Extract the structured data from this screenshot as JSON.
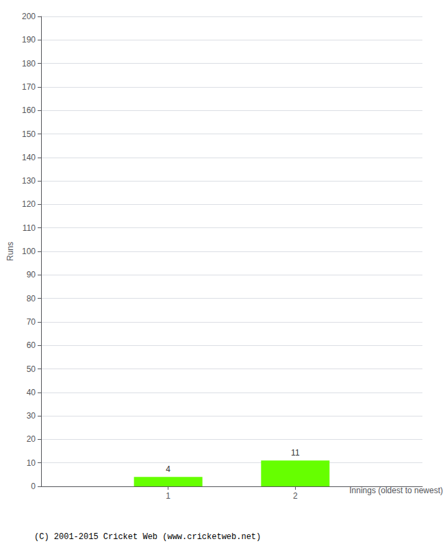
{
  "chart_data": {
    "type": "bar",
    "x": [
      1,
      2
    ],
    "values": [
      4,
      11
    ],
    "color": "#66ff00",
    "xlabel": "Innings (oldest to newest)",
    "ylabel": "Runs",
    "xlim": [
      0,
      3
    ],
    "xticks": [
      1,
      2
    ],
    "ylim": [
      0,
      200
    ],
    "yticks": [
      0,
      10,
      20,
      30,
      40,
      50,
      60,
      70,
      80,
      90,
      100,
      110,
      120,
      130,
      140,
      150,
      160,
      170,
      180,
      190,
      200
    ],
    "grid": true,
    "data_labels": true,
    "annotations": [
      "(C) 2001-2015 Cricket Web (www.cricketweb.net)"
    ]
  }
}
